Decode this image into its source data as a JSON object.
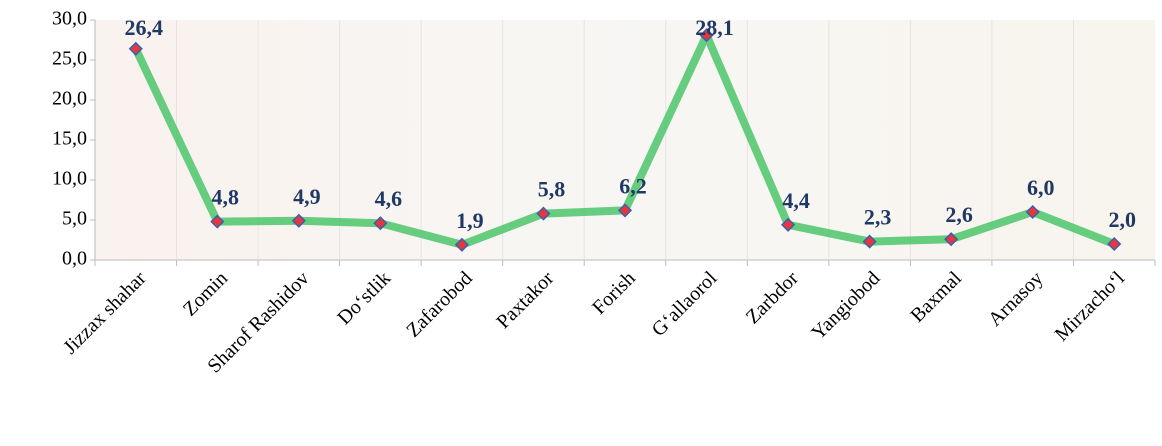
{
  "chart_data": {
    "type": "line",
    "categories": [
      "Jizzax shahar",
      "Zomin",
      "Sharof Rashidov",
      "Do‘stlik",
      "Zafarobod",
      "Paxtakor",
      "Forish",
      "G‘allaorol",
      "Zarbdor",
      "Yangiobod",
      "Baxmal",
      "Arnasoy",
      "Mirzacho‘l"
    ],
    "values": [
      26.4,
      4.8,
      4.9,
      4.6,
      1.9,
      5.8,
      6.2,
      28.1,
      4.4,
      2.3,
      2.6,
      6.0,
      2.0
    ],
    "value_labels": [
      "26,4",
      "4,8",
      "4,9",
      "4,6",
      "1,9",
      "5,8",
      "6,2",
      "28,1",
      "4,4",
      "2,3",
      "2,6",
      "6,0",
      "2,0"
    ],
    "color": "#4cc46a",
    "ylim": [
      0,
      30
    ],
    "yticks": [
      {
        "value": 0,
        "label": "0,0"
      },
      {
        "value": 5,
        "label": "5,0"
      },
      {
        "value": 10,
        "label": "10,0"
      },
      {
        "value": 15,
        "label": "15,0"
      },
      {
        "value": 20,
        "label": "20,0"
      },
      {
        "value": 25,
        "label": "25,0"
      },
      {
        "value": 30,
        "label": "30,0"
      }
    ]
  }
}
